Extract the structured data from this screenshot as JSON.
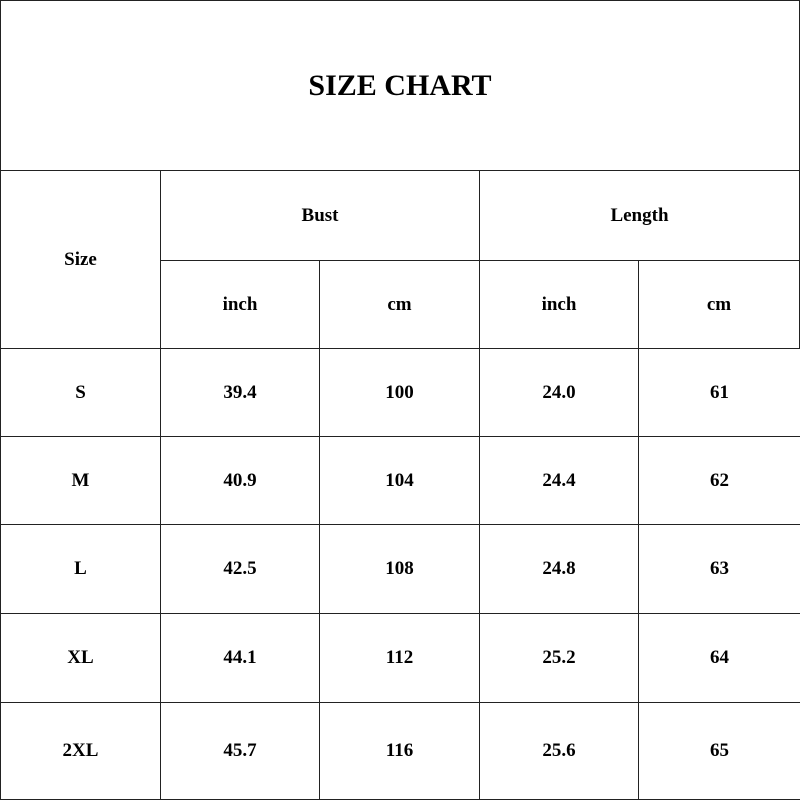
{
  "title": "SIZE CHART",
  "headers": {
    "size": "Size",
    "bust": "Bust",
    "length": "Length",
    "units": [
      "inch",
      "cm",
      "inch",
      "cm"
    ]
  },
  "rows": [
    {
      "size": "S",
      "bust_inch": "39.4",
      "bust_cm": "100",
      "length_inch": "24.0",
      "length_cm": "61"
    },
    {
      "size": "M",
      "bust_inch": "40.9",
      "bust_cm": "104",
      "length_inch": "24.4",
      "length_cm": "62"
    },
    {
      "size": "L",
      "bust_inch": "42.5",
      "bust_cm": "108",
      "length_inch": "24.8",
      "length_cm": "63"
    },
    {
      "size": "XL",
      "bust_inch": "44.1",
      "bust_cm": "112",
      "length_inch": "25.2",
      "length_cm": "64"
    },
    {
      "size": "2XL",
      "bust_inch": "45.7",
      "bust_cm": "116",
      "length_inch": "25.6",
      "length_cm": "65"
    }
  ]
}
